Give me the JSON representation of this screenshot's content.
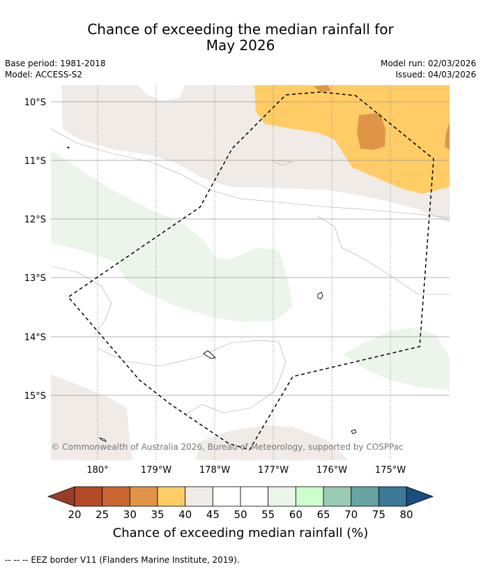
{
  "title_line1": "Chance of exceeding the median rainfall for",
  "title_line2": "May 2026",
  "meta_left": [
    "Base period: 1981-2018",
    "Model: ACCESS-S2"
  ],
  "meta_right": [
    "Model run: 02/03/2026",
    "Issued: 04/03/2026"
  ],
  "lat_labels": [
    "10°S",
    "11°S",
    "12°S",
    "13°S",
    "14°S",
    "15°S"
  ],
  "lon_labels": [
    "180°",
    "179°W",
    "178°W",
    "177°W",
    "176°W",
    "175°W"
  ],
  "copyright": "© Commonwealth of Australia 2026, Bureau of Meteorology, supported by COSPPac",
  "colorbar": {
    "ticks": [
      "20",
      "25",
      "30",
      "35",
      "40",
      "45",
      "50",
      "55",
      "60",
      "65",
      "70",
      "75",
      "80"
    ],
    "colors": [
      "#b34a26",
      "#cc6633",
      "#e09447",
      "#ffcc66",
      "#f0ebe6",
      "#ffffff",
      "#ffffff",
      "#ebf5ea",
      "#ccffcc",
      "#99ccb3",
      "#66a3a3",
      "#3d7899"
    ],
    "under_color": "#993d29",
    "over_color": "#1a4d80",
    "label": "Chance of exceeding median rainfall (%)"
  },
  "footnote": "--  --  -- EEZ border V11 (Flanders Marine Institute, 2019)."
}
